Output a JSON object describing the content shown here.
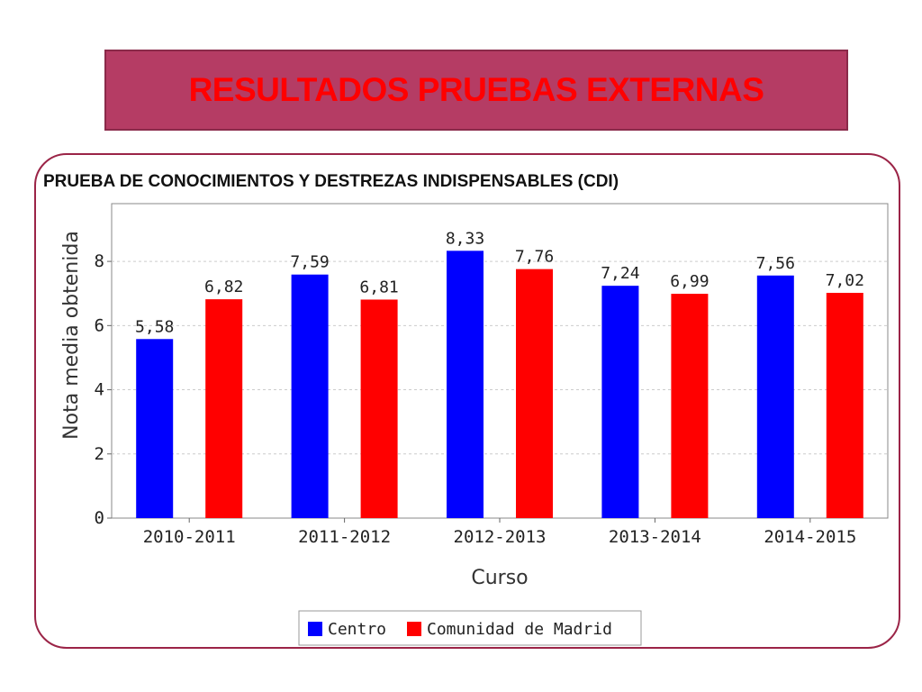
{
  "banner": {
    "title": "RESULTADOS PRUEBAS EXTERNAS"
  },
  "colors": {
    "centro": "#0000ff",
    "madrid": "#ff0000",
    "banner_bg": "#b53c64",
    "banner_text": "#ff0000"
  },
  "chart_data": {
    "type": "bar",
    "title": "PRUEBA DE CONOCIMIENTOS Y DESTREZAS INDISPENSABLES (CDI)",
    "xlabel": "Curso",
    "ylabel": "Nota media obtenida",
    "ylim": [
      0,
      9.8
    ],
    "yticks": [
      0,
      2,
      4,
      6,
      8
    ],
    "grid": true,
    "legend": "bottom",
    "categories": [
      "2010-2011",
      "2011-2012",
      "2012-2013",
      "2013-2014",
      "2014-2015"
    ],
    "series": [
      {
        "name": "Centro",
        "color": "#0000ff",
        "values": [
          5.58,
          7.59,
          8.33,
          7.24,
          7.56
        ],
        "labels": [
          "5,58",
          "7,59",
          "8,33",
          "7,24",
          "7,56"
        ]
      },
      {
        "name": "Comunidad de Madrid",
        "color": "#ff0000",
        "values": [
          6.82,
          6.81,
          7.76,
          6.99,
          7.02
        ],
        "labels": [
          "6,82",
          "6,81",
          "7,76",
          "6,99",
          "7,02"
        ]
      }
    ]
  }
}
